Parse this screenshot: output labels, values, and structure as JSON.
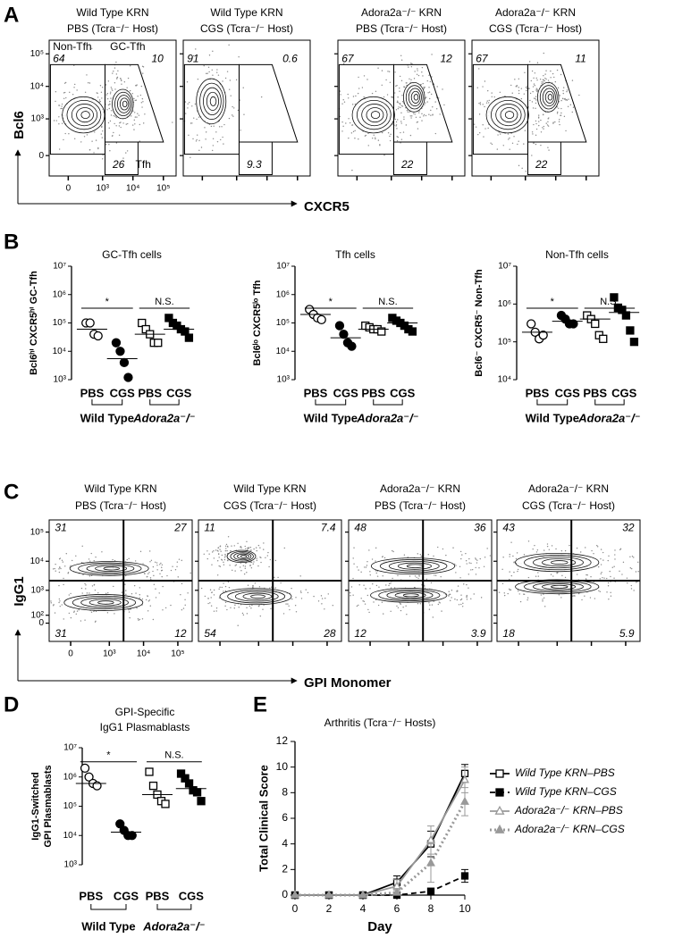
{
  "chart_data": [
    {
      "type": "flow",
      "panel": "A",
      "gating": "gates",
      "xlabel": "CXCR5",
      "ylabel": "Bcl6",
      "xlim": [
        -300,
        262144
      ],
      "ylim": [
        -300,
        262144
      ],
      "xticks": [
        0,
        {
          "value": 1000,
          "label": "10³"
        },
        {
          "value": 10000,
          "label": "10⁴"
        },
        {
          "value": 100000,
          "label": "10⁵"
        }
      ],
      "yticks": [
        0,
        {
          "value": 1000,
          "label": "10³"
        },
        {
          "value": 10000,
          "label": "10⁴"
        },
        {
          "value": 100000,
          "label": "10⁵"
        }
      ],
      "plots": [
        {
          "title": [
            "Wild Type KRN",
            "PBS (Tcra⁻/⁻ Host)"
          ],
          "gates": [
            {
              "name": "Non-Tfh",
              "value": 64
            },
            {
              "name": "GC-Tfh",
              "value": 10
            },
            {
              "name": "Tfh",
              "value": 26
            }
          ]
        },
        {
          "title": [
            "Wild Type KRN",
            "CGS (Tcra⁻/⁻ Host)"
          ],
          "gates": [
            {
              "value": 91
            },
            {
              "value": 0.6
            },
            {
              "value": 9.3
            }
          ]
        },
        {
          "title": [
            "Adora2a⁻/⁻ KRN",
            "PBS (Tcra⁻/⁻ Host)"
          ],
          "gates": [
            {
              "value": 67
            },
            {
              "value": 12
            },
            {
              "value": 22
            }
          ]
        },
        {
          "title": [
            "Adora2a⁻/⁻ KRN",
            "CGS (Tcra⁻/⁻ Host)"
          ],
          "gates": [
            {
              "value": 67
            },
            {
              "value": 11
            },
            {
              "value": 22
            }
          ]
        }
      ]
    },
    {
      "type": "dotplot",
      "panel": "B",
      "plots": [
        {
          "title": [
            "GC-Tfh cells"
          ],
          "ylabel": [
            "Bcl6ʰⁱ CXCR5ʰⁱ GC-Tfh"
          ],
          "log": true,
          "ylim": [
            1000,
            10000000
          ],
          "yticks": [
            {
              "value": 1000,
              "label": "10³"
            },
            {
              "value": 10000,
              "label": "10⁴"
            },
            {
              "value": 100000,
              "label": "10⁵"
            },
            {
              "value": 1000000,
              "label": "10⁶"
            },
            {
              "value": 10000000,
              "label": "10⁷"
            }
          ],
          "groups": [
            {
              "name": "PBS",
              "marker": "circle",
              "filled": false,
              "color": "#000000",
              "values": [
                100000,
                100000,
                40000,
                35000
              ],
              "mean": 60000
            },
            {
              "name": "CGS",
              "marker": "circle",
              "filled": true,
              "color": "#000000",
              "values": [
                20000,
                10000,
                4000,
                1200
              ],
              "mean": 5500
            },
            {
              "name": "PBS",
              "marker": "square",
              "filled": false,
              "color": "#000000",
              "values": [
                100000,
                60000,
                40000,
                20000,
                20000
              ],
              "mean": 40000
            },
            {
              "name": "CGS",
              "marker": "square",
              "filled": true,
              "color": "#000000",
              "values": [
                150000,
                100000,
                80000,
                60000,
                50000,
                30000
              ],
              "mean": 60000
            }
          ],
          "comparisons": [
            {
              "name": "Wild Type",
              "significance": "*"
            },
            {
              "name": "Adora2a⁻/⁻",
              "significance": "N.S."
            }
          ]
        },
        {
          "title": [
            "Tfh cells"
          ],
          "ylabel": [
            "Bcl6ˡᵒ CXCR5ˡᵒ Tfh"
          ],
          "log": true,
          "ylim": [
            1000,
            10000000
          ],
          "yticks": [
            {
              "value": 1000,
              "label": "10³"
            },
            {
              "value": 10000,
              "label": "10⁴"
            },
            {
              "value": 100000,
              "label": "10⁵"
            },
            {
              "value": 1000000,
              "label": "10⁶"
            },
            {
              "value": 10000000,
              "label": "10⁷"
            }
          ],
          "groups": [
            {
              "name": "PBS",
              "marker": "circle",
              "filled": false,
              "color": "#000000",
              "values": [
                300000,
                200000,
                150000,
                130000
              ],
              "mean": 200000
            },
            {
              "name": "CGS",
              "marker": "circle",
              "filled": true,
              "color": "#000000",
              "values": [
                80000,
                40000,
                20000,
                15000
              ],
              "mean": 30000
            },
            {
              "name": "PBS",
              "marker": "square",
              "filled": false,
              "color": "#000000",
              "values": [
                80000,
                70000,
                60000,
                60000,
                50000
              ],
              "mean": 60000
            },
            {
              "name": "CGS",
              "marker": "square",
              "filled": true,
              "color": "#000000",
              "values": [
                150000,
                120000,
                100000,
                80000,
                60000,
                50000
              ],
              "mean": 100000
            }
          ],
          "comparisons": [
            {
              "name": "Wild Type",
              "significance": "*"
            },
            {
              "name": "Adora2a⁻/⁻",
              "significance": "N.S."
            }
          ]
        },
        {
          "title": [
            "Non-Tfh cells"
          ],
          "ylabel": [
            "Bcl6⁻ CXCR5⁻ Non-Tfh"
          ],
          "log": true,
          "ylim": [
            10000,
            10000000
          ],
          "yticks": [
            {
              "value": 10000,
              "label": "10⁴"
            },
            {
              "value": 100000,
              "label": "10⁵"
            },
            {
              "value": 1000000,
              "label": "10⁶"
            },
            {
              "value": 10000000,
              "label": "10⁷"
            }
          ],
          "groups": [
            {
              "name": "PBS",
              "marker": "circle",
              "filled": false,
              "color": "#000000",
              "values": [
                300000,
                180000,
                120000,
                150000
              ],
              "mean": 180000
            },
            {
              "name": "CGS",
              "marker": "circle",
              "filled": true,
              "color": "#000000",
              "values": [
                500000,
                400000,
                300000,
                300000
              ],
              "mean": 350000
            },
            {
              "name": "PBS",
              "marker": "square",
              "filled": false,
              "color": "#000000",
              "values": [
                500000,
                400000,
                300000,
                150000,
                120000
              ],
              "mean": 400000
            },
            {
              "name": "CGS",
              "marker": "square",
              "filled": true,
              "color": "#000000",
              "values": [
                1500000,
                800000,
                700000,
                500000,
                200000,
                100000
              ],
              "mean": 600000
            }
          ],
          "comparisons": [
            {
              "name": "Wild Type",
              "significance": "*"
            },
            {
              "name": "Adora2a⁻/⁻",
              "significance": "N.S."
            }
          ]
        }
      ]
    },
    {
      "type": "flow",
      "panel": "C",
      "gating": "quadrants",
      "xlabel": "GPI Monomer",
      "ylabel": "IgG1",
      "xlim": [
        -300,
        262144
      ],
      "ylim": [
        -300,
        262144
      ],
      "xticks": [
        0,
        {
          "value": 1000,
          "label": "10³"
        },
        {
          "value": 10000,
          "label": "10⁴"
        },
        {
          "value": 100000,
          "label": "10⁵"
        }
      ],
      "yticks": [
        0,
        {
          "value": 100,
          "label": "10²"
        },
        {
          "value": 1000,
          "label": "10³"
        },
        {
          "value": 10000,
          "label": "10⁴"
        },
        {
          "value": 100000,
          "label": "10⁵"
        }
      ],
      "plots": [
        {
          "title": [
            "Wild Type KRN",
            "PBS (Tcra⁻/⁻ Host)"
          ],
          "gates": [
            {
              "value": 31
            },
            {
              "value": 27
            },
            {
              "value": 31
            },
            {
              "value": 12
            }
          ]
        },
        {
          "title": [
            "Wild Type KRN",
            "CGS (Tcra⁻/⁻ Host)"
          ],
          "gates": [
            {
              "value": 11
            },
            {
              "value": 7.4
            },
            {
              "value": 54
            },
            {
              "value": 28
            }
          ]
        },
        {
          "title": [
            "Adora2a⁻/⁻ KRN",
            "PBS (Tcra⁻/⁻ Host)"
          ],
          "gates": [
            {
              "value": 48
            },
            {
              "value": 36
            },
            {
              "value": 12
            },
            {
              "value": 3.9
            }
          ]
        },
        {
          "title": [
            "Adora2a⁻/⁻ KRN",
            "CGS (Tcra⁻/⁻ Host)"
          ],
          "gates": [
            {
              "value": 43
            },
            {
              "value": 32
            },
            {
              "value": 18
            },
            {
              "value": 5.9
            }
          ]
        }
      ]
    },
    {
      "type": "dotplot",
      "panel": "D",
      "plots": [
        {
          "title": [
            "GPI-Specific",
            "IgG1 Plasmablasts"
          ],
          "ylabel": [
            "IgG1-Switched",
            "GPI Plasmablasts"
          ],
          "log": true,
          "ylim": [
            1000,
            10000000
          ],
          "yticks": [
            {
              "value": 1000,
              "label": "10³"
            },
            {
              "value": 10000,
              "label": "10⁴"
            },
            {
              "value": 100000,
              "label": "10⁵"
            },
            {
              "value": 1000000,
              "label": "10⁶"
            },
            {
              "value": 10000000,
              "label": "10⁷"
            }
          ],
          "groups": [
            {
              "name": "PBS",
              "marker": "circle",
              "filled": false,
              "color": "#000000",
              "values": [
                2000000,
                1000000,
                600000,
                500000
              ],
              "mean": 600000
            },
            {
              "name": "CGS",
              "marker": "circle",
              "filled": true,
              "color": "#000000",
              "values": [
                25000,
                15000,
                10000,
                10000
              ],
              "mean": 13000
            },
            {
              "name": "PBS",
              "marker": "square",
              "filled": false,
              "color": "#000000",
              "values": [
                1500000,
                500000,
                250000,
                150000,
                120000
              ],
              "mean": 250000
            },
            {
              "name": "CGS",
              "marker": "square",
              "filled": true,
              "color": "#000000",
              "values": [
                1300000,
                900000,
                600000,
                350000,
                300000,
                150000
              ],
              "mean": 400000
            }
          ],
          "comparisons": [
            {
              "name": "Wild Type",
              "significance": "*"
            },
            {
              "name": "Adora2a⁻/⁻",
              "significance": "N.S."
            }
          ]
        }
      ]
    },
    {
      "type": "line",
      "panel": "E",
      "title": "Arthritis (Tcra⁻/⁻ Hosts)",
      "xlabel": "Day",
      "ylabel": "Total Clinical Score",
      "x": [
        0,
        2,
        4,
        6,
        8,
        10
      ],
      "xlim": [
        0,
        10
      ],
      "ylim": [
        0,
        12
      ],
      "xticks": [
        0,
        2,
        4,
        6,
        8,
        10
      ],
      "yticks": [
        0,
        2,
        4,
        6,
        8,
        10,
        12
      ],
      "legend": "right",
      "series": [
        {
          "name": "Wild Type KRN–PBS",
          "color": "#000000",
          "marker": "square",
          "filled": false,
          "dash": "solid",
          "values": [
            0,
            0,
            0,
            1.0,
            4.0,
            9.5
          ],
          "errors": [
            0,
            0,
            0,
            0.5,
            1.0,
            0.7
          ]
        },
        {
          "name": "Wild Type KRN–CGS",
          "color": "#000000",
          "marker": "square",
          "filled": true,
          "dash": "dashed",
          "values": [
            0,
            0,
            0,
            0,
            0.3,
            1.5
          ],
          "errors": [
            0,
            0,
            0,
            0,
            0.2,
            0.5
          ]
        },
        {
          "name": "Adora2a⁻/⁻ KRN–PBS",
          "color": "#999999",
          "marker": "triangle",
          "filled": false,
          "dash": "solid",
          "values": [
            0,
            0,
            0,
            0.7,
            4.3,
            9.0
          ],
          "errors": [
            0,
            0,
            0,
            0.5,
            1.1,
            1.0
          ]
        },
        {
          "name": "Adora2a⁻/⁻ KRN–CGS",
          "color": "#999999",
          "marker": "triangle",
          "filled": true,
          "dash": "dotted",
          "values": [
            0,
            0,
            0,
            0.2,
            2.5,
            7.3
          ],
          "errors": [
            0,
            0,
            0,
            0.2,
            1.5,
            1.1
          ]
        }
      ]
    }
  ]
}
